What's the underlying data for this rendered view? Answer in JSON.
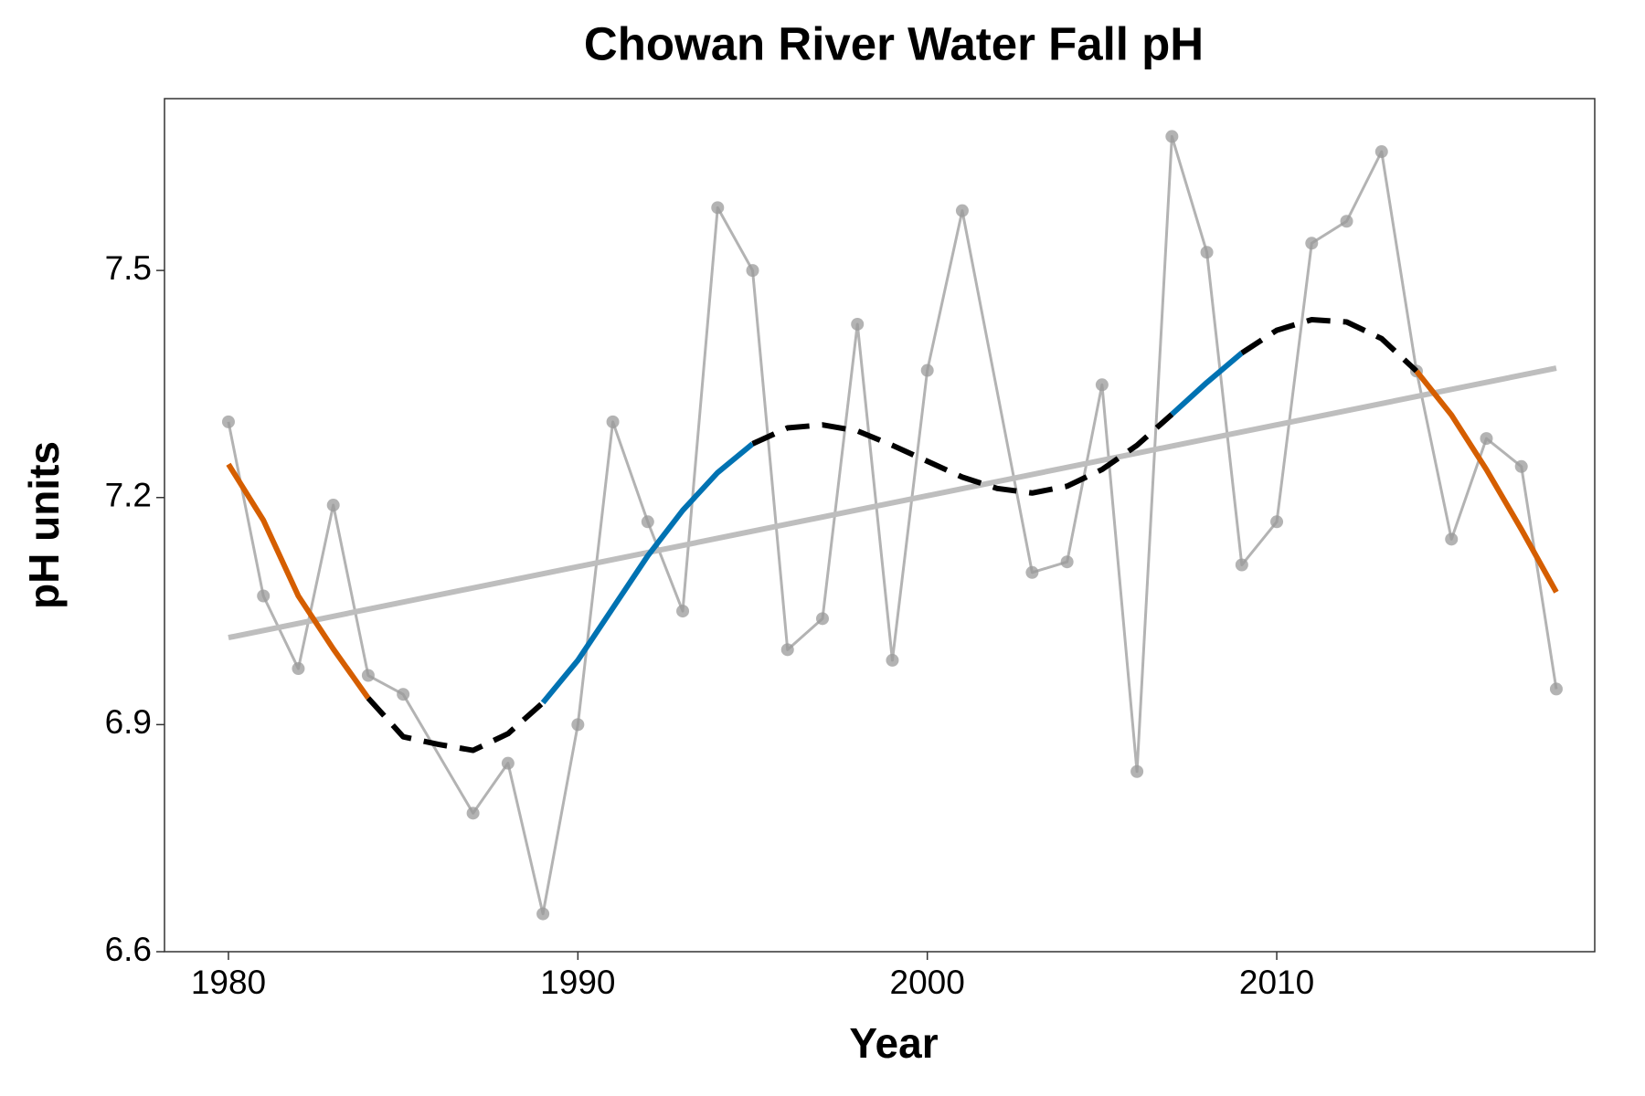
{
  "chart_data": {
    "type": "line",
    "title": "Chowan River Water Fall pH",
    "x_label": "Year",
    "y_label": "pH units",
    "xlim": [
      1978.17,
      2019.1
    ],
    "ylim": [
      6.6,
      7.727
    ],
    "xticks": [
      1980,
      1990,
      2000,
      2010
    ],
    "yticks": [
      6.6,
      6.9,
      7.2,
      7.5
    ],
    "observed": {
      "color": "#b3b3b3",
      "x": [
        1980,
        1981,
        1982,
        1983,
        1984,
        1985,
        1987,
        1988,
        1989,
        1990,
        1991,
        1992,
        1993,
        1994,
        1995,
        1996,
        1997,
        1998,
        1999,
        2000,
        2001,
        2003,
        2004,
        2005,
        2006,
        2007,
        2008,
        2009,
        2010,
        2011,
        2012,
        2013,
        2014,
        2015,
        2016,
        2017,
        2018
      ],
      "values": [
        7.3,
        7.07,
        6.974,
        7.19,
        6.965,
        6.94,
        6.783,
        6.849,
        6.65,
        6.9,
        7.3,
        7.168,
        7.05,
        7.583,
        7.5,
        6.999,
        7.04,
        7.429,
        6.985,
        7.368,
        7.579,
        7.101,
        7.115,
        7.349,
        6.838,
        7.677,
        7.524,
        7.111,
        7.168,
        7.536,
        7.565,
        7.657,
        7.367,
        7.145,
        7.278,
        7.241,
        6.947
      ]
    },
    "trend": {
      "color": "#bebebe",
      "x": [
        1980,
        2018
      ],
      "values": [
        7.015,
        7.371
      ]
    },
    "smooth": [
      {
        "color": "#d55e00",
        "dash": false,
        "x": [
          1980,
          1981,
          1982,
          1983,
          1984
        ],
        "values": [
          7.244,
          7.17,
          7.07,
          7.0,
          6.935
        ]
      },
      {
        "color": "#000000",
        "dash": true,
        "x": [
          1984,
          1985,
          1986,
          1987,
          1988,
          1989
        ],
        "values": [
          6.935,
          6.884,
          6.874,
          6.866,
          6.888,
          6.929
        ]
      },
      {
        "color": "#0072b2",
        "dash": false,
        "x": [
          1989,
          1990,
          1991,
          1992,
          1993,
          1994,
          1995
        ],
        "values": [
          6.929,
          6.985,
          7.054,
          7.123,
          7.183,
          7.233,
          7.271
        ]
      },
      {
        "color": "#000000",
        "dash": true,
        "x": [
          1995,
          1996,
          1997,
          1998,
          1999,
          2000,
          2001,
          2002,
          2003,
          2004,
          2005,
          2006,
          2007
        ],
        "values": [
          7.271,
          7.292,
          7.296,
          7.288,
          7.269,
          7.248,
          7.227,
          7.212,
          7.206,
          7.215,
          7.237,
          7.269,
          7.31
        ]
      },
      {
        "color": "#0072b2",
        "dash": false,
        "x": [
          2007,
          2008,
          2009
        ],
        "values": [
          7.31,
          7.352,
          7.391
        ]
      },
      {
        "color": "#000000",
        "dash": true,
        "x": [
          2009,
          2010,
          2011,
          2012,
          2013,
          2014
        ],
        "values": [
          7.391,
          7.421,
          7.435,
          7.432,
          7.41,
          7.367
        ]
      },
      {
        "color": "#d55e00",
        "dash": false,
        "x": [
          2014,
          2015,
          2016,
          2017,
          2018
        ],
        "values": [
          7.367,
          7.309,
          7.237,
          7.158,
          7.075
        ]
      }
    ]
  }
}
